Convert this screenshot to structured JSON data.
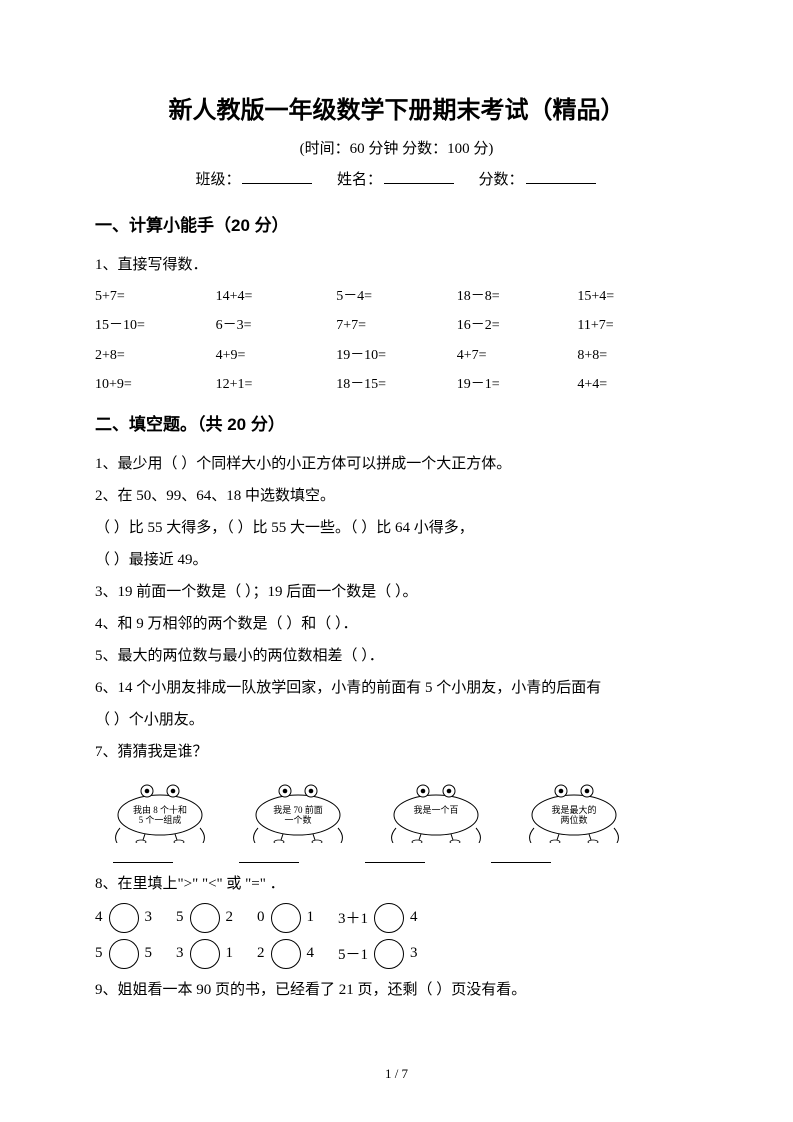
{
  "title": "新人教版一年级数学下册期末考试（精品）",
  "subtitle": "(时间：60 分钟   分数：100 分)",
  "info": {
    "class": "班级：",
    "name": "姓名：",
    "score": "分数："
  },
  "section1": {
    "head": "一、计算小能手（20 分）",
    "q1": "1、直接写得数．",
    "rows": [
      [
        "5+7=",
        "14+4=",
        "5－4=",
        "18－8=",
        "15+4="
      ],
      [
        "15－10=",
        "6－3=",
        "7+7=",
        "16－2=",
        "11+7="
      ],
      [
        "2+8=",
        "4+9=",
        "19－10=",
        "4+7=",
        "8+8="
      ],
      [
        "10+9=",
        "12+1=",
        "18－15=",
        "19－1=",
        "4+4="
      ]
    ]
  },
  "section2": {
    "head": "二、填空题。（共 20 分）",
    "q1": "1、最少用（    ）个同样大小的小正方体可以拼成一个大正方体。",
    "q2a": "2、在 50、99、64、18 中选数填空。",
    "q2b": "（    ）比 55 大得多，（    ）比 55 大一些。（    ）比 64 小得多，",
    "q2c": "（    ）最接近 49。",
    "q3": "3、19 前面一个数是（    ）；19 后面一个数是（    ）。",
    "q4": "4、和 9 万相邻的两个数是（    ）和（    ）．",
    "q5": "5、最大的两位数与最小的两位数相差（    ）．",
    "q6a": "6、14 个小朋友排成一队放学回家，小青的前面有 5 个小朋友，小青的后面有",
    "q6b": "（      ）个小朋友。",
    "q7": "7、猜猜我是谁？",
    "chars": [
      {
        "l1": "我由 8 个十和",
        "l2": "5 个一组成"
      },
      {
        "l1": "我是 70 前面",
        "l2": "一个数"
      },
      {
        "l1": "我是一个百",
        "l2": ""
      },
      {
        "l1": "我是最大的",
        "l2": "两位数"
      }
    ],
    "q8": "8、在里填上\">\" \"<\" 或 \"=\" ．",
    "cmp": [
      [
        {
          "a": "4",
          "b": "3"
        },
        {
          "a": "5",
          "b": "2"
        },
        {
          "a": "0",
          "b": "1"
        },
        {
          "a": "3＋1",
          "b": "4"
        }
      ],
      [
        {
          "a": "5",
          "b": "5"
        },
        {
          "a": "3",
          "b": "1"
        },
        {
          "a": "2",
          "b": "4"
        },
        {
          "a": "5－1",
          "b": "3"
        }
      ]
    ],
    "q9": "9、姐姐看一本 90 页的书，已经看了 21 页，还剩（     ）页没有看。"
  },
  "footer": "1 / 7"
}
